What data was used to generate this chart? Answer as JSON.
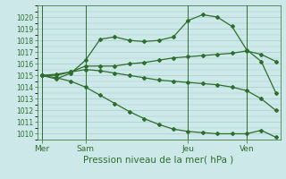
{
  "title": "Pression niveau de la mer( hPa )",
  "bg_color": "#cce8e8",
  "grid_color": "#aacccc",
  "line_color": "#2d6e2d",
  "ylim": [
    1009.5,
    1021.0
  ],
  "yticks": [
    1010,
    1011,
    1012,
    1013,
    1014,
    1015,
    1016,
    1017,
    1018,
    1019,
    1020
  ],
  "xtick_labels": [
    "Mer",
    "Sam",
    "Jeu",
    "Ven"
  ],
  "xtick_positions": [
    0,
    3,
    10,
    14
  ],
  "vlines": [
    0,
    3,
    10,
    14
  ],
  "xlim": [
    -0.3,
    16.3
  ],
  "series1_x": [
    0,
    1,
    2,
    3,
    4,
    5,
    6,
    7,
    8,
    9,
    10,
    11,
    12,
    13,
    14,
    15,
    16
  ],
  "series1_y": [
    1015.0,
    1014.7,
    1015.2,
    1016.3,
    1018.1,
    1018.3,
    1018.0,
    1017.9,
    1018.0,
    1018.3,
    1019.7,
    1020.2,
    1020.0,
    1019.2,
    1017.2,
    1016.2,
    1013.5
  ],
  "series2_x": [
    0,
    1,
    2,
    3,
    4,
    5,
    6,
    7,
    8,
    9,
    10,
    11,
    12,
    13,
    14,
    15,
    16
  ],
  "series2_y": [
    1015.0,
    1015.0,
    1015.3,
    1015.8,
    1015.8,
    1015.8,
    1016.0,
    1016.1,
    1016.3,
    1016.5,
    1016.6,
    1016.7,
    1016.8,
    1016.9,
    1017.1,
    1016.8,
    1016.2
  ],
  "series3_x": [
    0,
    1,
    2,
    3,
    4,
    5,
    6,
    7,
    8,
    9,
    10,
    11,
    12,
    13,
    14,
    15,
    16
  ],
  "series3_y": [
    1015.0,
    1015.1,
    1015.3,
    1015.5,
    1015.4,
    1015.2,
    1015.0,
    1014.8,
    1014.6,
    1014.5,
    1014.4,
    1014.3,
    1014.2,
    1014.0,
    1013.7,
    1013.0,
    1012.0
  ],
  "series4_x": [
    0,
    1,
    2,
    3,
    4,
    5,
    6,
    7,
    8,
    9,
    10,
    11,
    12,
    13,
    14,
    15,
    16
  ],
  "series4_y": [
    1015.0,
    1014.8,
    1014.5,
    1014.0,
    1013.3,
    1012.6,
    1011.9,
    1011.3,
    1010.8,
    1010.4,
    1010.2,
    1010.1,
    1010.0,
    1010.0,
    1010.0,
    1010.3,
    1009.7
  ]
}
